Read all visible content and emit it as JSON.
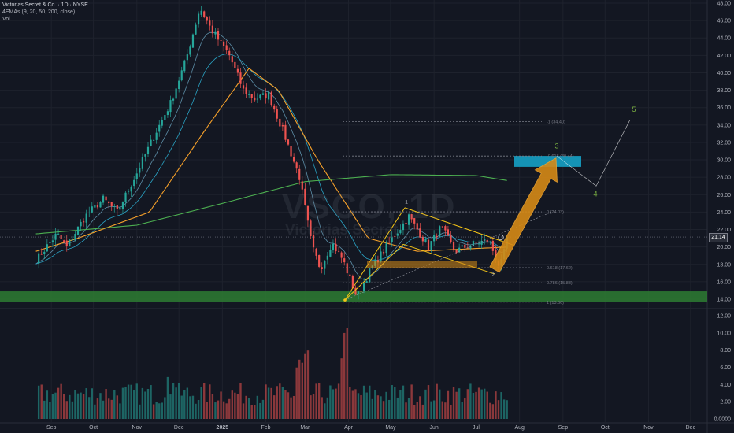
{
  "header": {
    "title": "Victorias Secret & Co. · 1D · NYSE",
    "indicator": "4EMAs (9, 20, 50, 200, close)",
    "volume": "Vol"
  },
  "watermark": {
    "ticker": "VSCO, 1D",
    "name": "Victorias Secret"
  },
  "last_price": "21.14",
  "colors": {
    "background": "#131722",
    "up": "#26a69a",
    "down": "#ef5350",
    "ema9": "#5d8fa8",
    "ema20": "#2aa3c4",
    "ema50": "#f7a12a",
    "ema200": "#4caf50",
    "pattern": "#f5c518",
    "arrow": "#d68a16",
    "target_box": "#1593b5",
    "support_zone": "#2e7d32",
    "fib": "#787b86",
    "wave_label": "#7cb342"
  },
  "fib_levels": [
    {
      "label": "-1 (34.40)",
      "value": 34.4
    },
    {
      "label": "-0.618 (30.44)",
      "value": 30.44
    },
    {
      "label": "0 (24.03)",
      "value": 24.03
    },
    {
      "label": "0.618 (17.62)",
      "value": 17.62
    },
    {
      "label": "0.786 (15.88)",
      "value": 15.88
    },
    {
      "label": "1 (13.66)",
      "value": 13.66
    }
  ],
  "wave_labels": [
    "1",
    "2",
    "3",
    "4",
    "5"
  ],
  "chart_data": [
    {
      "type": "candlestick",
      "x_ticks": [
        "Sep",
        "Oct",
        "Nov",
        "Dec",
        "2025",
        "Feb",
        "Mar",
        "Apr",
        "May",
        "Jun",
        "Jul",
        "Aug",
        "Sep",
        "Oct",
        "Nov",
        "Dec"
      ],
      "y_ticks": [
        "48.00",
        "46.00",
        "44.00",
        "42.00",
        "40.00",
        "38.00",
        "36.00",
        "34.00",
        "32.00",
        "30.00",
        "28.00",
        "26.00",
        "24.00",
        "22.00",
        "20.00",
        "18.00",
        "16.00",
        "14.00"
      ],
      "ylim": [
        13,
        48.6
      ],
      "price_path": [
        {
          "date": "2024-08-21",
          "price": 18.5
        },
        {
          "date": "2024-09-05",
          "price": 21.5
        },
        {
          "date": "2024-09-12",
          "price": 20.0
        },
        {
          "date": "2024-09-25",
          "price": 23.5
        },
        {
          "date": "2024-10-08",
          "price": 25.5
        },
        {
          "date": "2024-10-18",
          "price": 24.0
        },
        {
          "date": "2024-11-01",
          "price": 28.5
        },
        {
          "date": "2024-11-14",
          "price": 33.0
        },
        {
          "date": "2024-11-25",
          "price": 36.5
        },
        {
          "date": "2024-12-06",
          "price": 41.5
        },
        {
          "date": "2024-12-16",
          "price": 47.5
        },
        {
          "date": "2024-12-24",
          "price": 45.0
        },
        {
          "date": "2025-01-06",
          "price": 42.0
        },
        {
          "date": "2025-01-16",
          "price": 38.0
        },
        {
          "date": "2025-01-24",
          "price": 37.0
        },
        {
          "date": "2025-02-03",
          "price": 37.5
        },
        {
          "date": "2025-02-14",
          "price": 33.0
        },
        {
          "date": "2025-02-25",
          "price": 28.0
        },
        {
          "date": "2025-03-06",
          "price": 20.0
        },
        {
          "date": "2025-03-12",
          "price": 17.5
        },
        {
          "date": "2025-03-20",
          "price": 20.5
        },
        {
          "date": "2025-03-28",
          "price": 18.5
        },
        {
          "date": "2025-04-07",
          "price": 14.2
        },
        {
          "date": "2025-04-17",
          "price": 17.5
        },
        {
          "date": "2025-04-30",
          "price": 20.5
        },
        {
          "date": "2025-05-14",
          "price": 23.5
        },
        {
          "date": "2025-05-28",
          "price": 20.0
        },
        {
          "date": "2025-06-06",
          "price": 22.3
        },
        {
          "date": "2025-06-16",
          "price": 19.5
        },
        {
          "date": "2025-06-26",
          "price": 20.2
        },
        {
          "date": "2025-07-10",
          "price": 20.8
        },
        {
          "date": "2025-07-18",
          "price": 17.6
        },
        {
          "date": "2025-07-24",
          "price": 21.1
        }
      ],
      "ema200_path": [
        {
          "date": "2024-08-21",
          "price": 21.5
        },
        {
          "date": "2024-11-01",
          "price": 22.5
        },
        {
          "date": "2025-01-01",
          "price": 25.0
        },
        {
          "date": "2025-03-01",
          "price": 27.5
        },
        {
          "date": "2025-05-01",
          "price": 28.3
        },
        {
          "date": "2025-07-01",
          "price": 28.2
        },
        {
          "date": "2025-07-24",
          "price": 27.6
        }
      ],
      "ema50_path": [
        {
          "date": "2024-08-21",
          "price": 19.5
        },
        {
          "date": "2024-09-20",
          "price": 21.0
        },
        {
          "date": "2024-11-10",
          "price": 24.0
        },
        {
          "date": "2024-12-20",
          "price": 33.5
        },
        {
          "date": "2025-01-20",
          "price": 40.5
        },
        {
          "date": "2025-02-10",
          "price": 38.0
        },
        {
          "date": "2025-03-10",
          "price": 30.0
        },
        {
          "date": "2025-04-15",
          "price": 21.0
        },
        {
          "date": "2025-05-20",
          "price": 19.5
        },
        {
          "date": "2025-07-24",
          "price": 20.0
        }
      ]
    },
    {
      "type": "bar",
      "name": "Vol",
      "y_ticks": [
        "12.00",
        "10.00",
        "8.00",
        "6.00",
        "4.00",
        "2.00",
        "0.0000"
      ],
      "ylim": [
        0,
        12
      ]
    }
  ]
}
